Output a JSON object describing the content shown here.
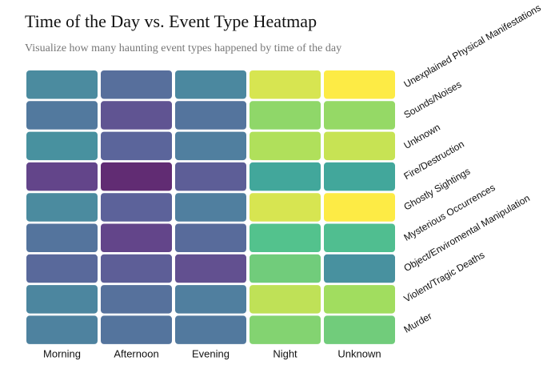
{
  "chart_data": {
    "type": "heatmap",
    "title": "Time of the Day vs. Event Type Heatmap",
    "subtitle": "Visualize how many haunting event types happened by time of the day",
    "x_categories": [
      "Morning",
      "Afternoon",
      "Evening",
      "Night",
      "Unknown"
    ],
    "y_categories": [
      "Unexplained Physical Manifestations",
      "Sounds/Noises",
      "Unknown",
      "Fire/Destruction",
      "Ghostly Sightings",
      "Mysterious Occurrences",
      "Object/Enviromental Manipulation",
      "Violent/Tragic Deaths",
      "Murder"
    ],
    "values": [
      [
        0.45,
        0.3,
        0.43,
        0.95,
        1.0
      ],
      [
        0.35,
        0.18,
        0.33,
        0.85,
        0.86
      ],
      [
        0.48,
        0.25,
        0.38,
        0.9,
        0.93
      ],
      [
        0.12,
        0.02,
        0.22,
        0.6,
        0.6
      ],
      [
        0.45,
        0.24,
        0.38,
        0.95,
        1.0
      ],
      [
        0.33,
        0.12,
        0.28,
        0.75,
        0.73
      ],
      [
        0.27,
        0.22,
        0.16,
        0.8,
        0.48
      ],
      [
        0.42,
        0.31,
        0.38,
        0.92,
        0.88
      ],
      [
        0.4,
        0.33,
        0.35,
        0.83,
        0.8
      ]
    ],
    "color_scale": "viridis",
    "legend": "none",
    "grid": false
  }
}
